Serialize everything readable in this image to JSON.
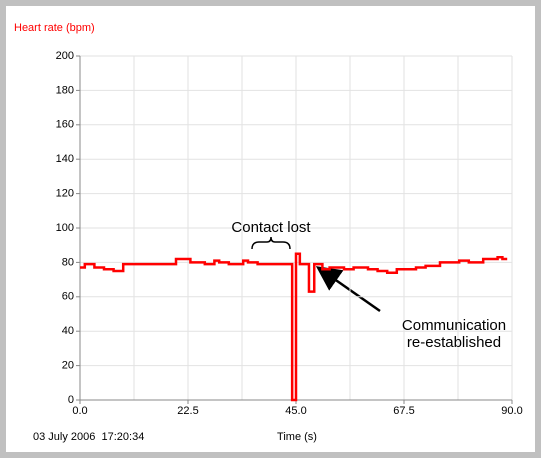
{
  "chart_data": {
    "type": "line",
    "ylabel": "Heart rate (bpm)",
    "xlabel": "Time (s)",
    "timestamp": "03 July 2006  17:20:34",
    "color": "#ff0000",
    "x": [
      0,
      1,
      1,
      3,
      3,
      5,
      5,
      7,
      7,
      9,
      9,
      20,
      20,
      23,
      23,
      26,
      26,
      28,
      28,
      29,
      29,
      31,
      31,
      34,
      34,
      35,
      35,
      37,
      37,
      44.2,
      44.2,
      45,
      45,
      45.8,
      45.8,
      47.7,
      47.7,
      48.8,
      48.8,
      50.5,
      50.5,
      52,
      52,
      55,
      55,
      57,
      57,
      60,
      60,
      62,
      62,
      64,
      64,
      66,
      66,
      70,
      70,
      72,
      72,
      75,
      75,
      79,
      79,
      81,
      81,
      84,
      84,
      87,
      87,
      88,
      88,
      89
    ],
    "values": [
      77,
      77,
      79,
      79,
      77,
      77,
      76,
      76,
      75,
      75,
      79,
      79,
      82,
      82,
      80,
      80,
      79,
      79,
      81,
      81,
      80,
      80,
      79,
      79,
      81,
      81,
      80,
      80,
      79,
      79,
      0,
      0,
      85,
      85,
      79,
      79,
      63,
      63,
      79,
      79,
      76,
      76,
      77,
      77,
      76,
      76,
      77,
      77,
      76,
      76,
      75,
      75,
      74,
      74,
      76,
      76,
      77,
      77,
      78,
      78,
      80,
      80,
      81,
      81,
      80,
      80,
      82,
      82,
      83,
      83,
      82,
      82
    ],
    "xlim": [
      0,
      90
    ],
    "xticks": [
      {
        "value": 0,
        "label": "0.0"
      },
      22.5,
      {
        "value": 45,
        "label": "45.0"
      },
      67.5,
      {
        "value": 90,
        "label": "90.0"
      }
    ],
    "xgrid_minor": [
      11.25,
      33.75,
      56.25,
      78.75
    ],
    "ylim": [
      0,
      200
    ],
    "yticks": [
      0,
      20,
      40,
      60,
      80,
      100,
      120,
      140,
      160,
      180,
      200
    ],
    "grid": true,
    "annotations": [
      {
        "text": [
          "Contact lost"
        ]
      },
      {
        "text": [
          "Communication",
          "re-established"
        ]
      }
    ]
  }
}
